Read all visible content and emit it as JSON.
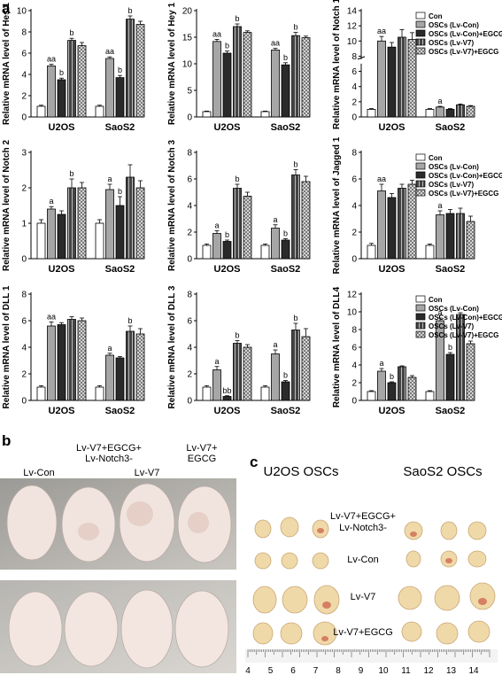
{
  "panels": {
    "a": "a",
    "b": "b",
    "c": "c"
  },
  "legend_entries": [
    "Con",
    "OSCs (Lv-Con)",
    "OSCs (Lv-Con)+EGCG",
    "OSCs (Lv-V7)",
    "OSCs (Lv-V7)+EGCG"
  ],
  "colors": {
    "con": "#ffffff",
    "lvcon": "#a6a6a6",
    "lvcon_egcg": "#2a2a2a",
    "lvv7": "#555555",
    "lvv7_egcg": "#cfcfcf"
  },
  "chart_data": [
    {
      "type": "bar",
      "ylabel": "Relative mRNA level of Hes 1",
      "categories": [
        "U2OS",
        "SaoS2"
      ],
      "ylim": [
        0,
        10
      ],
      "yticks": [
        0,
        2,
        4,
        6,
        8,
        10
      ],
      "series": [
        {
          "name": "Con",
          "values": [
            1.0,
            1.0
          ],
          "errors": [
            0.1,
            0.1
          ]
        },
        {
          "name": "OSCs (Lv-Con)",
          "values": [
            4.8,
            5.5
          ],
          "errors": [
            0.15,
            0.15
          ]
        },
        {
          "name": "OSCs (Lv-Con)+EGCG",
          "values": [
            3.5,
            3.7
          ],
          "errors": [
            0.15,
            0.2
          ]
        },
        {
          "name": "OSCs (Lv-V7)",
          "values": [
            7.2,
            9.2
          ],
          "errors": [
            0.2,
            0.3
          ]
        },
        {
          "name": "OSCs (Lv-V7)+EGCG",
          "values": [
            6.7,
            8.7
          ],
          "errors": [
            0.3,
            0.3
          ]
        }
      ],
      "annotations": [
        [
          "",
          "aa",
          "b",
          "b",
          ""
        ],
        [
          "",
          "aa",
          "b",
          "b",
          ""
        ]
      ]
    },
    {
      "type": "bar",
      "ylabel": "Relative mRNA level of Hey 1",
      "categories": [
        "U2OS",
        "SaoS2"
      ],
      "ylim": [
        0,
        20
      ],
      "yticks": [
        0,
        5,
        10,
        15,
        20
      ],
      "series": [
        {
          "name": "Con",
          "values": [
            1.0,
            1.0
          ],
          "errors": [
            0.1,
            0.1
          ]
        },
        {
          "name": "OSCs (Lv-Con)",
          "values": [
            14.2,
            12.6
          ],
          "errors": [
            0.4,
            0.3
          ]
        },
        {
          "name": "OSCs (Lv-Con)+EGCG",
          "values": [
            12.0,
            9.8
          ],
          "errors": [
            0.4,
            0.4
          ]
        },
        {
          "name": "OSCs (Lv-V7)",
          "values": [
            17.0,
            15.3
          ],
          "errors": [
            0.5,
            0.6
          ]
        },
        {
          "name": "OSCs (Lv-V7)+EGCG",
          "values": [
            15.9,
            14.9
          ],
          "errors": [
            0.3,
            0.3
          ]
        }
      ],
      "annotations": [
        [
          "",
          "aa",
          "b",
          "b",
          ""
        ],
        [
          "",
          "aa",
          "b",
          "b",
          ""
        ]
      ]
    },
    {
      "type": "bar",
      "ylabel": "Relative mRNA level of Notch 1",
      "categories": [
        "U2OS",
        "SaoS2"
      ],
      "ylim": [
        0,
        14
      ],
      "yticks": [
        0,
        2,
        4,
        6,
        8,
        10,
        12,
        14
      ],
      "broken_axis": true,
      "series": [
        {
          "name": "Con",
          "values": [
            1.0,
            1.0
          ],
          "errors": [
            0.1,
            0.1
          ]
        },
        {
          "name": "OSCs (Lv-Con)",
          "values": [
            10.0,
            1.3
          ],
          "errors": [
            0.6,
            0.1
          ]
        },
        {
          "name": "OSCs (Lv-Con)+EGCG",
          "values": [
            9.2,
            1.0
          ],
          "errors": [
            0.6,
            0.1
          ]
        },
        {
          "name": "OSCs (Lv-V7)",
          "values": [
            10.5,
            1.6
          ],
          "errors": [
            1.0,
            0.1
          ]
        },
        {
          "name": "OSCs (Lv-V7)+EGCG",
          "values": [
            10.2,
            1.4
          ],
          "errors": [
            0.9,
            0.1
          ]
        }
      ],
      "annotations": [
        [
          "",
          "aa",
          "",
          "",
          ""
        ],
        [
          "",
          "a",
          "",
          "",
          ""
        ]
      ]
    },
    {
      "type": "bar",
      "ylabel": "Relative mRNA level of Notch 2",
      "categories": [
        "U2OS",
        "SaoS2"
      ],
      "ylim": [
        0,
        3
      ],
      "yticks": [
        0,
        1,
        2,
        3
      ],
      "series": [
        {
          "name": "Con",
          "values": [
            1.0,
            1.0
          ],
          "errors": [
            0.1,
            0.1
          ]
        },
        {
          "name": "OSCs (Lv-Con)",
          "values": [
            1.4,
            1.95
          ],
          "errors": [
            0.07,
            0.15
          ]
        },
        {
          "name": "OSCs (Lv-Con)+EGCG",
          "values": [
            1.25,
            1.5
          ],
          "errors": [
            0.1,
            0.25
          ]
        },
        {
          "name": "OSCs (Lv-V7)",
          "values": [
            2.0,
            2.3
          ],
          "errors": [
            0.25,
            0.35
          ]
        },
        {
          "name": "OSCs (Lv-V7)+EGCG",
          "values": [
            2.0,
            2.0
          ],
          "errors": [
            0.15,
            0.2
          ]
        }
      ],
      "annotations": [
        [
          "",
          "a",
          "",
          "b",
          ""
        ],
        [
          "",
          "a",
          "b",
          "",
          ""
        ]
      ]
    },
    {
      "type": "bar",
      "ylabel": "Relative mRNA level of Notch 3",
      "categories": [
        "U2OS",
        "SaoS2"
      ],
      "ylim": [
        0,
        8
      ],
      "yticks": [
        0,
        2,
        4,
        6,
        8
      ],
      "series": [
        {
          "name": "Con",
          "values": [
            1.0,
            1.0
          ],
          "errors": [
            0.1,
            0.1
          ]
        },
        {
          "name": "OSCs (Lv-Con)",
          "values": [
            1.9,
            2.3
          ],
          "errors": [
            0.2,
            0.25
          ]
        },
        {
          "name": "OSCs (Lv-Con)+EGCG",
          "values": [
            1.3,
            1.4
          ],
          "errors": [
            0.1,
            0.1
          ]
        },
        {
          "name": "OSCs (Lv-V7)",
          "values": [
            5.3,
            6.3
          ],
          "errors": [
            0.3,
            0.4
          ]
        },
        {
          "name": "OSCs (Lv-V7)+EGCG",
          "values": [
            4.7,
            5.8
          ],
          "errors": [
            0.3,
            0.4
          ]
        }
      ],
      "annotations": [
        [
          "",
          "a",
          "b",
          "b",
          ""
        ],
        [
          "",
          "a",
          "b",
          "b",
          ""
        ]
      ]
    },
    {
      "type": "bar",
      "ylabel": "Relative mRNA level of Jagged 1",
      "categories": [
        "U2OS",
        "SaoS2"
      ],
      "ylim": [
        0,
        8
      ],
      "yticks": [
        0,
        2,
        4,
        6,
        8
      ],
      "series": [
        {
          "name": "Con",
          "values": [
            1.0,
            1.0
          ],
          "errors": [
            0.15,
            0.1
          ]
        },
        {
          "name": "OSCs (Lv-Con)",
          "values": [
            5.1,
            3.3
          ],
          "errors": [
            0.5,
            0.3
          ]
        },
        {
          "name": "OSCs (Lv-Con)+EGCG",
          "values": [
            4.6,
            3.4
          ],
          "errors": [
            0.3,
            0.3
          ]
        },
        {
          "name": "OSCs (Lv-V7)",
          "values": [
            5.3,
            3.4
          ],
          "errors": [
            0.3,
            0.4
          ]
        },
        {
          "name": "OSCs (Lv-V7)+EGCG",
          "values": [
            5.6,
            2.8
          ],
          "errors": [
            0.3,
            0.4
          ]
        }
      ],
      "annotations": [
        [
          "",
          "aa",
          "",
          "",
          ""
        ],
        [
          "",
          "a",
          "",
          "",
          ""
        ]
      ]
    },
    {
      "type": "bar",
      "ylabel": "Relative mRNA level of DLL 1",
      "categories": [
        "U2OS",
        "SaoS2"
      ],
      "ylim": [
        0,
        8
      ],
      "yticks": [
        0,
        2,
        4,
        6,
        8
      ],
      "series": [
        {
          "name": "Con",
          "values": [
            1.0,
            1.0
          ],
          "errors": [
            0.1,
            0.1
          ]
        },
        {
          "name": "OSCs (Lv-Con)",
          "values": [
            5.6,
            3.4
          ],
          "errors": [
            0.3,
            0.15
          ]
        },
        {
          "name": "OSCs (Lv-Con)+EGCG",
          "values": [
            5.7,
            3.2
          ],
          "errors": [
            0.15,
            0.1
          ]
        },
        {
          "name": "OSCs (Lv-V7)",
          "values": [
            6.1,
            5.2
          ],
          "errors": [
            0.2,
            0.4
          ]
        },
        {
          "name": "OSCs (Lv-V7)+EGCG",
          "values": [
            6.0,
            5.0
          ],
          "errors": [
            0.2,
            0.4
          ]
        }
      ],
      "annotations": [
        [
          "",
          "aa",
          "",
          "",
          ""
        ],
        [
          "",
          "a",
          "",
          "b",
          ""
        ]
      ]
    },
    {
      "type": "bar",
      "ylabel": "Relative mRNA level of DLL 3",
      "categories": [
        "U2OS",
        "SaoS2"
      ],
      "ylim": [
        0,
        8
      ],
      "yticks": [
        0,
        2,
        4,
        6,
        8
      ],
      "series": [
        {
          "name": "Con",
          "values": [
            1.0,
            1.0
          ],
          "errors": [
            0.1,
            0.1
          ]
        },
        {
          "name": "OSCs (Lv-Con)",
          "values": [
            2.3,
            3.5
          ],
          "errors": [
            0.25,
            0.3
          ]
        },
        {
          "name": "OSCs (Lv-Con)+EGCG",
          "values": [
            0.3,
            1.4
          ],
          "errors": [
            0.05,
            0.1
          ]
        },
        {
          "name": "OSCs (Lv-V7)",
          "values": [
            4.3,
            5.3
          ],
          "errors": [
            0.2,
            0.5
          ]
        },
        {
          "name": "OSCs (Lv-V7)+EGCG",
          "values": [
            4.0,
            4.8
          ],
          "errors": [
            0.2,
            0.6
          ]
        }
      ],
      "annotations": [
        [
          "",
          "a",
          "bb",
          "b",
          ""
        ],
        [
          "",
          "a",
          "b",
          "b",
          ""
        ]
      ]
    },
    {
      "type": "bar",
      "ylabel": "Relative mRNA level of DLL4",
      "categories": [
        "U2OS",
        "SaoS2"
      ],
      "ylim": [
        0,
        12
      ],
      "yticks": [
        0,
        2,
        4,
        6,
        8,
        10,
        12
      ],
      "series": [
        {
          "name": "Con",
          "values": [
            1.0,
            1.0
          ],
          "errors": [
            0.1,
            0.1
          ]
        },
        {
          "name": "OSCs (Lv-Con)",
          "values": [
            3.3,
            9.0
          ],
          "errors": [
            0.3,
            0.3
          ]
        },
        {
          "name": "OSCs (Lv-Con)+EGCG",
          "values": [
            2.0,
            5.2
          ],
          "errors": [
            0.1,
            0.2
          ]
        },
        {
          "name": "OSCs (Lv-V7)",
          "values": [
            3.8,
            9.7
          ],
          "errors": [
            0.1,
            0.2
          ]
        },
        {
          "name": "OSCs (Lv-V7)+EGCG",
          "values": [
            2.6,
            6.4
          ],
          "errors": [
            0.2,
            0.3
          ]
        }
      ],
      "annotations": [
        [
          "",
          "a",
          "b",
          "",
          ""
        ],
        [
          "",
          "a",
          "b",
          "",
          ""
        ]
      ]
    }
  ],
  "panel_b": {
    "labels": [
      "Lv-Con",
      "Lv-V7+EGCG+\nLv-Notch3-",
      "Lv-V7",
      "Lv-V7+\nEGCG"
    ]
  },
  "panel_c": {
    "header_left": "U2OS OSCs",
    "header_right": "SaoS2 OSCs",
    "row_labels": [
      "Lv-V7+EGCG+\nLv-Notch3-",
      "Lv-Con",
      "Lv-V7",
      "Lv-V7+EGCG"
    ],
    "ruler_numbers": [
      "4",
      "5",
      "6",
      "7",
      "8",
      "9",
      "10",
      "11",
      "12",
      "13",
      "14"
    ]
  }
}
